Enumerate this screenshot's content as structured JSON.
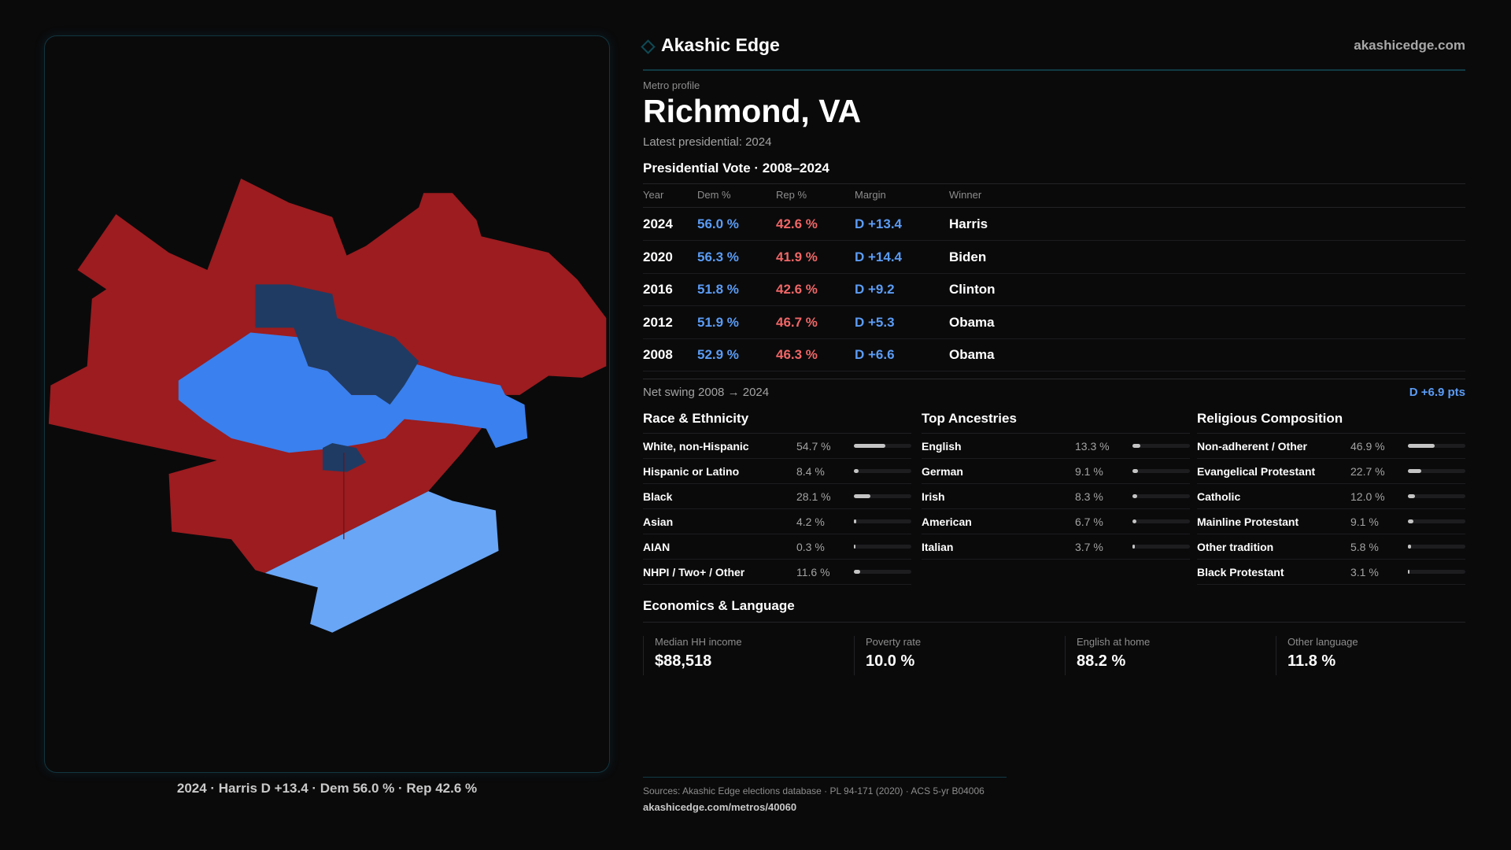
{
  "brand": {
    "name": "Akashic Edge",
    "site": "akashicedge.com"
  },
  "profile": {
    "eyebrow": "Metro profile",
    "title": "Richmond, VA",
    "latest": "Latest presidential: 2024"
  },
  "vote": {
    "title": "Presidential Vote · 2008–2024",
    "headers": [
      "Year",
      "Dem %",
      "Rep %",
      "Margin",
      "Winner"
    ],
    "rows": [
      {
        "year": "2024",
        "dem": "56.0 %",
        "rep": "42.6 %",
        "margin": "D +13.4",
        "winner": "Harris"
      },
      {
        "year": "2020",
        "dem": "56.3 %",
        "rep": "41.9 %",
        "margin": "D +14.4",
        "winner": "Biden"
      },
      {
        "year": "2016",
        "dem": "51.8 %",
        "rep": "42.6 %",
        "margin": "D +9.2",
        "winner": "Clinton"
      },
      {
        "year": "2012",
        "dem": "51.9 %",
        "rep": "46.7 %",
        "margin": "D +5.3",
        "winner": "Obama"
      },
      {
        "year": "2008",
        "dem": "52.9 %",
        "rep": "46.3 %",
        "margin": "D +6.6",
        "winner": "Obama"
      }
    ],
    "swing_label": "Net swing 2008 → 2024",
    "swing_value": "D +6.9 pts"
  },
  "sections": [
    {
      "title": "Race & Ethnicity",
      "items": [
        {
          "label": "White, non-Hispanic",
          "value": "54.7 %",
          "pct": 54.7
        },
        {
          "label": "Hispanic or Latino",
          "value": "8.4 %",
          "pct": 8.4
        },
        {
          "label": "Black",
          "value": "28.1 %",
          "pct": 28.1
        },
        {
          "label": "Asian",
          "value": "4.2 %",
          "pct": 4.2
        },
        {
          "label": "AIAN",
          "value": "0.3 %",
          "pct": 0.3
        },
        {
          "label": "NHPI / Two+ / Other",
          "value": "11.6 %",
          "pct": 11.6
        }
      ]
    },
    {
      "title": "Top Ancestries",
      "items": [
        {
          "label": "English",
          "value": "13.3 %",
          "pct": 13.3
        },
        {
          "label": "German",
          "value": "9.1 %",
          "pct": 9.1
        },
        {
          "label": "Irish",
          "value": "8.3 %",
          "pct": 8.3
        },
        {
          "label": "American",
          "value": "6.7 %",
          "pct": 6.7
        },
        {
          "label": "Italian",
          "value": "3.7 %",
          "pct": 3.7
        }
      ]
    },
    {
      "title": "Religious Composition",
      "items": [
        {
          "label": "Non-adherent / Other",
          "value": "46.9 %",
          "pct": 46.9
        },
        {
          "label": "Evangelical Protestant",
          "value": "22.7 %",
          "pct": 22.7
        },
        {
          "label": "Catholic",
          "value": "12.0 %",
          "pct": 12.0
        },
        {
          "label": "Mainline Protestant",
          "value": "9.1 %",
          "pct": 9.1
        },
        {
          "label": "Other tradition",
          "value": "5.8 %",
          "pct": 5.8
        },
        {
          "label": "Black Protestant",
          "value": "3.1 %",
          "pct": 3.1
        }
      ]
    }
  ],
  "economics": {
    "title": "Economics & Language",
    "cards": [
      {
        "label": "Median HH income",
        "value": "$88,518"
      },
      {
        "label": "Poverty rate",
        "value": "10.0 %"
      },
      {
        "label": "English at home",
        "value": "88.2 %"
      },
      {
        "label": "Other language",
        "value": "11.8 %"
      }
    ]
  },
  "map": {
    "caption": "2024 · Harris D +13.4 · Dem 56.0 % · Rep 42.6 %",
    "colors": {
      "rep": "#9c1c1f",
      "dem_strong": "#1f3b63",
      "dem": "#3a80ee",
      "dem_light": "#69a6f6"
    }
  },
  "footer": {
    "sources": "Sources: Akashic Edge elections database · PL 94-171 (2020) · ACS 5-yr B04006",
    "link": "akashicedge.com/metros/40060"
  }
}
